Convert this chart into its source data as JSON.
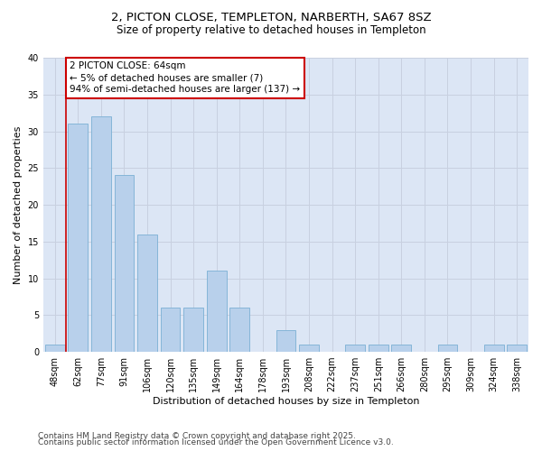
{
  "title_line1": "2, PICTON CLOSE, TEMPLETON, NARBERTH, SA67 8SZ",
  "title_line2": "Size of property relative to detached houses in Templeton",
  "xlabel": "Distribution of detached houses by size in Templeton",
  "ylabel": "Number of detached properties",
  "categories": [
    "48sqm",
    "62sqm",
    "77sqm",
    "91sqm",
    "106sqm",
    "120sqm",
    "135sqm",
    "149sqm",
    "164sqm",
    "178sqm",
    "193sqm",
    "208sqm",
    "222sqm",
    "237sqm",
    "251sqm",
    "266sqm",
    "280sqm",
    "295sqm",
    "309sqm",
    "324sqm",
    "338sqm"
  ],
  "values": [
    1,
    31,
    32,
    24,
    16,
    6,
    6,
    11,
    6,
    0,
    3,
    1,
    0,
    1,
    1,
    1,
    0,
    1,
    0,
    1,
    1
  ],
  "bar_color": "#b8d0eb",
  "bar_edge_color": "#7bafd4",
  "grid_color": "#c8d0e0",
  "background_color": "#dce6f5",
  "annotation_box_edgecolor": "#cc0000",
  "annotation_text_line1": "2 PICTON CLOSE: 64sqm",
  "annotation_text_line2": "← 5% of detached houses are smaller (7)",
  "annotation_text_line3": "94% of semi-detached houses are larger (137) →",
  "vline_x": 0.5,
  "vline_color": "#cc0000",
  "ylim": [
    0,
    40
  ],
  "yticks": [
    0,
    5,
    10,
    15,
    20,
    25,
    30,
    35,
    40
  ],
  "footnote_line1": "Contains HM Land Registry data © Crown copyright and database right 2025.",
  "footnote_line2": "Contains public sector information licensed under the Open Government Licence v3.0.",
  "title_fontsize": 9.5,
  "subtitle_fontsize": 8.5,
  "axis_label_fontsize": 8,
  "tick_fontsize": 7,
  "annotation_fontsize": 7.5,
  "footnote_fontsize": 6.5
}
